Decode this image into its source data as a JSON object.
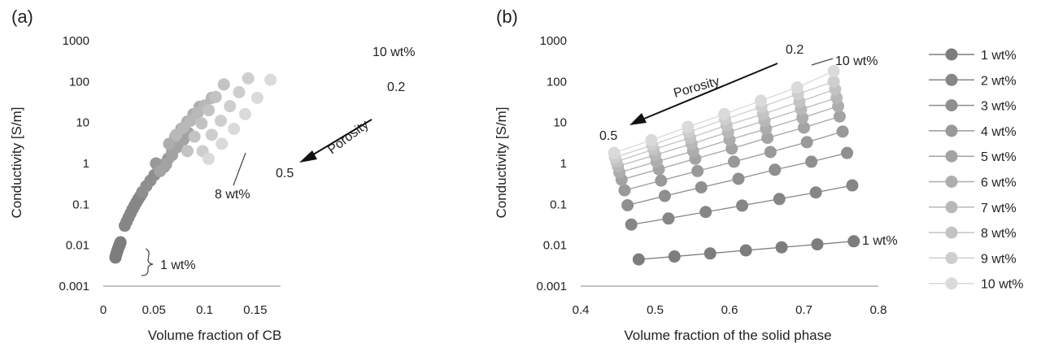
{
  "chart_data": [
    {
      "id": "a",
      "panel_label": "(a)",
      "type": "scatter",
      "title": "",
      "xlabel": "Volume fraction of CB",
      "ylabel": "Conductivity [S/m]",
      "xlim": [
        0,
        0.175
      ],
      "xticks": [
        0,
        0.05,
        0.1,
        0.15
      ],
      "xtick_labels": [
        "0",
        "0.05",
        "0.1",
        "0.15"
      ],
      "ylim": [
        0.001,
        1000
      ],
      "yscale": "log",
      "yticks": [
        0.001,
        0.01,
        0.1,
        1,
        10,
        100,
        1000
      ],
      "ytick_labels": [
        "0.001",
        "0.01",
        "0.1",
        "1",
        "10",
        "100",
        "1000"
      ],
      "grid": false,
      "series": [
        {
          "name": "1 wt%",
          "x": [
            0.012,
            0.0125,
            0.013,
            0.0135,
            0.014,
            0.0145,
            0.015,
            0.0155,
            0.016,
            0.0165,
            0.017
          ],
          "y": [
            0.005,
            0.0056,
            0.0062,
            0.0068,
            0.0074,
            0.0081,
            0.0087,
            0.0094,
            0.0101,
            0.0109,
            0.0118
          ]
        },
        {
          "name": "2 wt%",
          "x": [
            0.0212,
            0.0231,
            0.025,
            0.0269,
            0.0288,
            0.0308,
            0.0327,
            0.0346,
            0.0366,
            0.0385
          ],
          "y": [
            0.03,
            0.038,
            0.048,
            0.06,
            0.075,
            0.092,
            0.112,
            0.135,
            0.16,
            0.19
          ]
        },
        {
          "name": "3 wt%",
          "x": [
            0.0385,
            0.0425,
            0.0465,
            0.0505,
            0.0545,
            0.0585
          ],
          "y": [
            0.2,
            0.28,
            0.38,
            0.52,
            0.7,
            0.92
          ]
        },
        {
          "name": "4 wt%",
          "x": [
            0.052,
            0.056,
            0.06,
            0.064,
            0.068,
            0.072
          ],
          "y": [
            1.0,
            0.9,
            0.82,
            1.3,
            1.9,
            2.8
          ]
        },
        {
          "name": "5 wt%",
          "x": [
            0.056,
            0.062,
            0.068,
            0.073,
            0.079,
            0.084
          ],
          "y": [
            0.65,
            0.95,
            1.6,
            2.5,
            3.8,
            5.5
          ]
        },
        {
          "name": "6 wt%",
          "x": [
            0.065,
            0.071,
            0.077,
            0.083,
            0.089,
            0.095
          ],
          "y": [
            3.0,
            4.5,
            7.0,
            10.5,
            16.0,
            24.0
          ]
        },
        {
          "name": "7 wt%",
          "x": [
            0.072,
            0.079,
            0.086,
            0.093,
            0.1,
            0.107
          ],
          "y": [
            5.0,
            7.5,
            11.0,
            17.0,
            26.0,
            40.0
          ]
        },
        {
          "name": "8 wt%",
          "x": [
            0.083,
            0.09,
            0.097,
            0.104,
            0.111,
            0.119
          ],
          "y": [
            2.0,
            4.5,
            9.5,
            20.0,
            42.0,
            85.0
          ]
        },
        {
          "name": "9 wt%",
          "x": [
            0.098,
            0.107,
            0.116,
            0.125,
            0.134,
            0.143
          ],
          "y": [
            2.0,
            5.0,
            11.0,
            25.0,
            55.0,
            120.0
          ]
        },
        {
          "name": "10 wt%",
          "x": [
            0.104,
            0.117,
            0.129,
            0.14,
            0.152,
            0.165
          ],
          "y": [
            1.3,
            3.0,
            7.0,
            16.0,
            40.0,
            110.0
          ]
        }
      ],
      "annotations": {
        "label_10wt": "10 wt%",
        "label_02": "0.2",
        "label_porosity": "Porosity",
        "label_05": "0.5",
        "label_8wt": "8 wt%",
        "label_1wt": "1 wt%"
      }
    },
    {
      "id": "b",
      "panel_label": "(b)",
      "type": "line",
      "title": "",
      "xlabel": "Volume fraction of the solid phase",
      "ylabel": "Conductivity [S/m]",
      "xlim": [
        0.4,
        0.8
      ],
      "xticks": [
        0.4,
        0.5,
        0.6,
        0.7,
        0.8
      ],
      "xtick_labels": [
        "0.4",
        "0.5",
        "0.6",
        "0.7",
        "0.8"
      ],
      "ylim": [
        0.001,
        1000
      ],
      "yscale": "log",
      "yticks": [
        0.001,
        0.01,
        0.1,
        1,
        10,
        100,
        1000
      ],
      "ytick_labels": [
        "0.001",
        "0.01",
        "0.1",
        "1",
        "10",
        "100",
        "1000"
      ],
      "grid": false,
      "series": [
        {
          "name": "1 wt%",
          "x": [
            0.478,
            0.526,
            0.574,
            0.622,
            0.67,
            0.718,
            0.767
          ],
          "y": [
            0.0045,
            0.0053,
            0.0063,
            0.0075,
            0.0089,
            0.0105,
            0.0125
          ]
        },
        {
          "name": "2 wt%",
          "x": [
            0.468,
            0.518,
            0.568,
            0.617,
            0.667,
            0.716,
            0.765
          ],
          "y": [
            0.032,
            0.045,
            0.065,
            0.093,
            0.135,
            0.195,
            0.29
          ]
        },
        {
          "name": "3 wt%",
          "x": [
            0.463,
            0.513,
            0.562,
            0.612,
            0.661,
            0.71,
            0.758
          ],
          "y": [
            0.095,
            0.16,
            0.26,
            0.42,
            0.7,
            1.1,
            1.8
          ]
        },
        {
          "name": "4 wt%",
          "x": [
            0.459,
            0.508,
            0.557,
            0.606,
            0.655,
            0.704,
            0.752
          ],
          "y": [
            0.22,
            0.38,
            0.65,
            1.1,
            1.9,
            3.3,
            6.0
          ]
        },
        {
          "name": "5 wt%",
          "x": [
            0.455,
            0.505,
            0.554,
            0.603,
            0.651,
            0.7,
            0.748
          ],
          "y": [
            0.4,
            0.72,
            1.3,
            2.3,
            4.2,
            7.5,
            14.0
          ]
        },
        {
          "name": "6 wt%",
          "x": [
            0.452,
            0.502,
            0.551,
            0.6,
            0.649,
            0.698,
            0.746
          ],
          "y": [
            0.6,
            1.1,
            2.0,
            3.8,
            7.0,
            13.0,
            25.0
          ]
        },
        {
          "name": "7 wt%",
          "x": [
            0.45,
            0.5,
            0.549,
            0.598,
            0.647,
            0.696,
            0.744
          ],
          "y": [
            0.85,
            1.6,
            3.0,
            5.8,
            11.0,
            21.0,
            40.0
          ]
        },
        {
          "name": "8 wt%",
          "x": [
            0.448,
            0.498,
            0.547,
            0.596,
            0.645,
            0.694,
            0.742
          ],
          "y": [
            1.1,
            2.2,
            4.2,
            8.5,
            16.0,
            32.0,
            65.0
          ]
        },
        {
          "name": "9 wt%",
          "x": [
            0.446,
            0.496,
            0.545,
            0.594,
            0.643,
            0.692,
            0.74
          ],
          "y": [
            1.4,
            2.8,
            5.8,
            12.0,
            24.0,
            50.0,
            100.0
          ]
        },
        {
          "name": "10 wt%",
          "x": [
            0.445,
            0.495,
            0.544,
            0.593,
            0.642,
            0.691,
            0.74
          ],
          "y": [
            1.8,
            3.7,
            7.8,
            16.0,
            34.0,
            72.0,
            180.0
          ]
        }
      ],
      "annotations": {
        "label_02": "0.2",
        "label_10wt": "10 wt%",
        "label_porosity": "Porosity",
        "label_05": "0.5",
        "label_1wt": "1 wt%"
      },
      "legend": {
        "position": "right",
        "entries": [
          "1 wt%",
          "2 wt%",
          "3 wt%",
          "4 wt%",
          "5 wt%",
          "6 wt%",
          "7 wt%",
          "8 wt%",
          "9 wt%",
          "10 wt%"
        ]
      }
    }
  ],
  "colors": {
    "series": [
      "#7d7d7d",
      "#868686",
      "#8f8f8f",
      "#999999",
      "#a3a3a3",
      "#adadad",
      "#b8b8b8",
      "#c3c3c3",
      "#cecece",
      "#dadada"
    ],
    "axis": "#888888",
    "text": "#222222",
    "arrow": "#111111"
  }
}
